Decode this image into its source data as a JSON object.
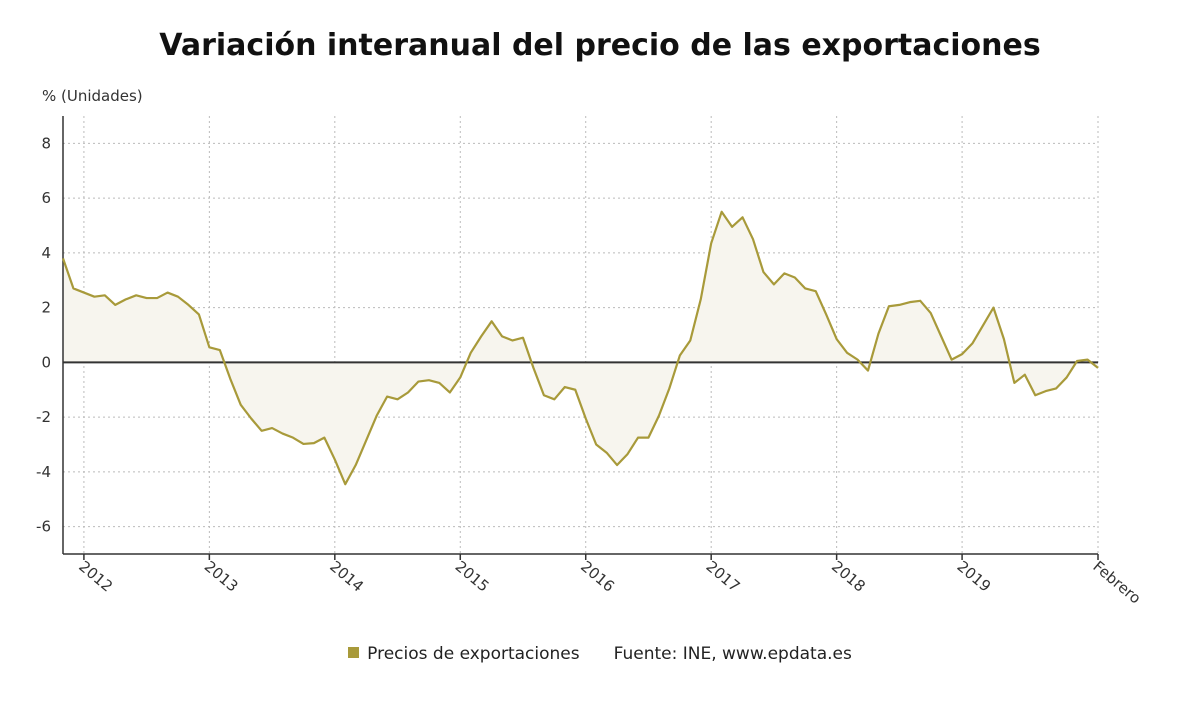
{
  "chart_data": {
    "type": "area",
    "title": "Variación interanual del precio de las exportaciones",
    "y_unit_label": "% (Unidades)",
    "xlabel": "",
    "ylabel": "",
    "ylim": [
      -7,
      9
    ],
    "y_ticks": [
      8,
      6,
      4,
      2,
      0,
      -2,
      -4,
      -6
    ],
    "x_tick_labels": [
      "2012",
      "2013",
      "2014",
      "2015",
      "2016",
      "2017",
      "2018",
      "2019",
      "Febrero"
    ],
    "grid": true,
    "legend_position": "bottom",
    "colors": {
      "series": "#a89a3a",
      "fill": "#f7f5ee",
      "zero_line": "#333333",
      "grid": "#bbbbbb"
    },
    "series": [
      {
        "name": "Precios de exportaciones",
        "start": "2011-11",
        "values": [
          3.8,
          2.7,
          2.55,
          2.4,
          2.45,
          2.1,
          2.3,
          2.45,
          2.35,
          2.35,
          2.55,
          2.4,
          2.1,
          1.75,
          0.55,
          0.45,
          -0.6,
          -1.55,
          -2.05,
          -2.5,
          -2.4,
          -2.6,
          -2.75,
          -2.98,
          -2.95,
          -2.75,
          -3.55,
          -4.45,
          -3.75,
          -2.85,
          -1.95,
          -1.25,
          -1.35,
          -1.1,
          -0.7,
          -0.65,
          -0.75,
          -1.1,
          -0.55,
          0.35,
          0.95,
          1.5,
          0.95,
          0.8,
          0.9,
          -0.2,
          -1.2,
          -1.35,
          -0.9,
          -1.0,
          -2.05,
          -3.0,
          -3.3,
          -3.75,
          -3.35,
          -2.75,
          -2.75,
          -1.95,
          -0.95,
          0.25,
          0.8,
          2.3,
          4.35,
          5.5,
          4.95,
          5.3,
          4.5,
          3.3,
          2.85,
          3.25,
          3.1,
          2.7,
          2.6,
          1.75,
          0.85,
          0.35,
          0.1,
          -0.3,
          1.05,
          2.05,
          2.1,
          2.2,
          2.25,
          1.8,
          0.95,
          0.1,
          0.3,
          0.7,
          1.35,
          2.0,
          0.85,
          -0.75,
          -0.45,
          -1.2,
          -1.05,
          -0.95,
          -0.55,
          0.05,
          0.1,
          -0.2
        ]
      }
    ],
    "source": "Fuente: INE, www.epdata.es"
  }
}
